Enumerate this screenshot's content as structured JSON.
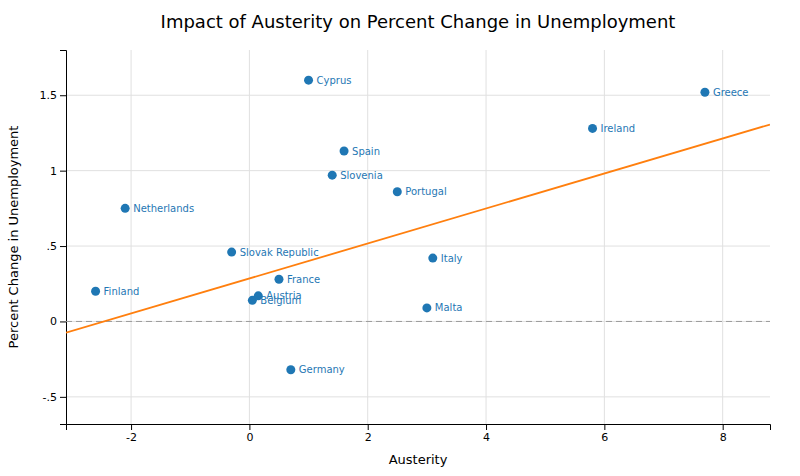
{
  "chart_data": {
    "type": "scatter",
    "title": "Impact of Austerity on Percent Change in Unemployment",
    "xlabel": "Austerity",
    "ylabel": "Percent Change in Unemployment",
    "series": [
      {
        "type": "scatter",
        "x": [
          -2.6,
          -2.1,
          -0.3,
          0.05,
          0.15,
          0.5,
          0.7,
          1.0,
          1.4,
          1.6,
          2.5,
          3.0,
          3.1,
          5.8,
          7.7
        ],
        "values": [
          0.2,
          0.75,
          0.46,
          0.14,
          0.17,
          0.28,
          -0.32,
          1.6,
          0.97,
          1.13,
          0.86,
          0.09,
          0.42,
          1.28,
          1.52
        ],
        "labels": [
          "Finland",
          "Netherlands",
          "Slovak Republic",
          "Belgium",
          "Austria",
          "France",
          "Germany",
          "Cyprus",
          "Slovenia",
          "Spain",
          "Portugal",
          "Malta",
          "Italy",
          "Ireland",
          "Greece"
        ]
      },
      {
        "type": "line",
        "x": [
          -3.1,
          8.8
        ],
        "values": [
          -0.0746,
          1.3058
        ]
      }
    ],
    "reference_line": {
      "y": 0,
      "line_style": "dashed"
    },
    "xlim": [
      -3.1,
      8.8
    ],
    "ylim": [
      -0.68,
      1.8
    ],
    "xticks": [
      -2,
      0,
      2,
      4,
      6,
      8
    ],
    "yticks": [
      {
        "value": -0.5,
        "label": "-.5"
      },
      0,
      {
        "value": 0.5,
        "label": ".5"
      },
      1,
      1.5
    ],
    "grid": true
  }
}
